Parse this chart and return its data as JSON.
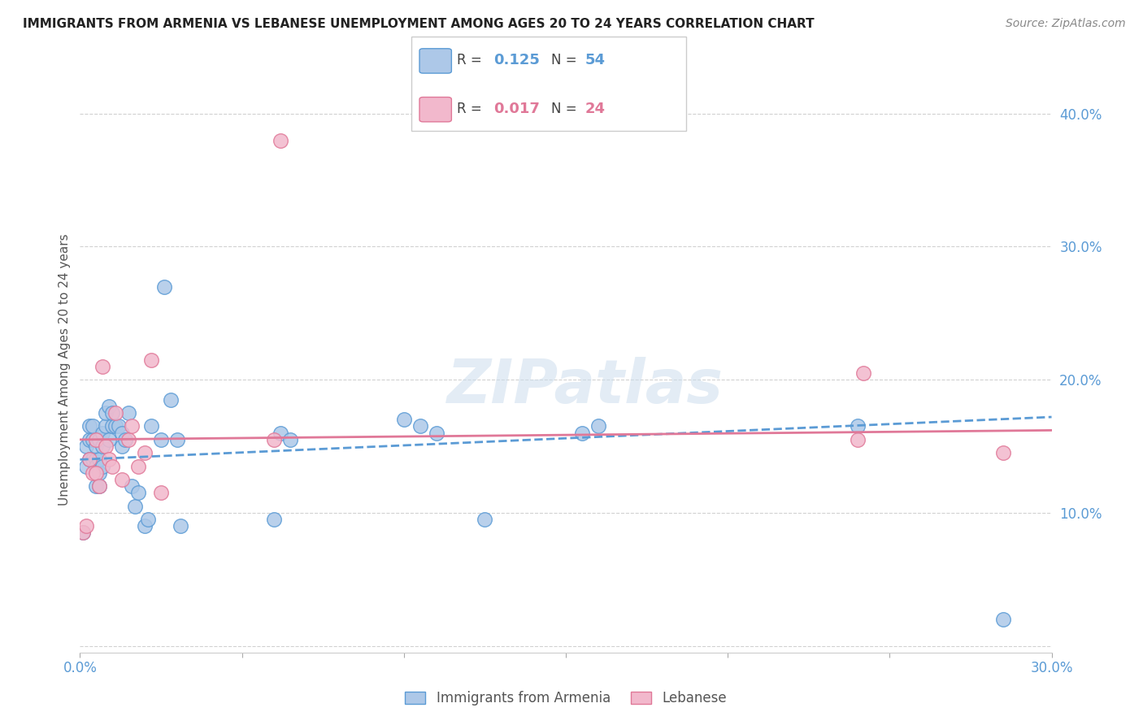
{
  "title": "IMMIGRANTS FROM ARMENIA VS LEBANESE UNEMPLOYMENT AMONG AGES 20 TO 24 YEARS CORRELATION CHART",
  "source": "Source: ZipAtlas.com",
  "ylabel": "Unemployment Among Ages 20 to 24 years",
  "xlim": [
    0.0,
    0.3
  ],
  "ylim": [
    -0.005,
    0.42
  ],
  "yticks": [
    0.0,
    0.1,
    0.2,
    0.3,
    0.4
  ],
  "ytick_labels": [
    "",
    "10.0%",
    "20.0%",
    "30.0%",
    "40.0%"
  ],
  "xticks": [
    0.0,
    0.05,
    0.1,
    0.15,
    0.2,
    0.25,
    0.3
  ],
  "xtick_labels": [
    "0.0%",
    "",
    "",
    "",
    "",
    "",
    "30.0%"
  ],
  "series1_color": "#adc8e8",
  "series1_edge_color": "#5b9bd5",
  "series2_color": "#f2b8cc",
  "series2_edge_color": "#e07898",
  "series1_label": "Immigrants from Armenia",
  "series2_label": "Lebanese",
  "series1_R": "0.125",
  "series1_N": "54",
  "series2_R": "0.017",
  "series2_N": "24",
  "r_label_color": "#5b9bd5",
  "n_label_color": "#5b9bd5",
  "r2_label_color": "#e07898",
  "n2_label_color": "#e07898",
  "axis_tick_color": "#5b9bd5",
  "grid_color": "#cccccc",
  "title_color": "#222222",
  "source_color": "#888888",
  "watermark": "ZIPatlas",
  "series1_x": [
    0.001,
    0.002,
    0.002,
    0.003,
    0.003,
    0.003,
    0.004,
    0.004,
    0.004,
    0.005,
    0.005,
    0.005,
    0.005,
    0.006,
    0.006,
    0.006,
    0.006,
    0.007,
    0.007,
    0.007,
    0.008,
    0.008,
    0.009,
    0.009,
    0.01,
    0.01,
    0.011,
    0.012,
    0.013,
    0.013,
    0.014,
    0.015,
    0.016,
    0.017,
    0.018,
    0.02,
    0.021,
    0.022,
    0.025,
    0.026,
    0.028,
    0.03,
    0.031,
    0.06,
    0.062,
    0.065,
    0.1,
    0.105,
    0.11,
    0.125,
    0.155,
    0.16,
    0.24,
    0.285
  ],
  "series1_y": [
    0.085,
    0.135,
    0.15,
    0.14,
    0.155,
    0.165,
    0.14,
    0.155,
    0.165,
    0.14,
    0.15,
    0.135,
    0.12,
    0.12,
    0.13,
    0.14,
    0.155,
    0.135,
    0.15,
    0.16,
    0.165,
    0.175,
    0.18,
    0.155,
    0.165,
    0.175,
    0.165,
    0.165,
    0.15,
    0.16,
    0.155,
    0.175,
    0.12,
    0.105,
    0.115,
    0.09,
    0.095,
    0.165,
    0.155,
    0.27,
    0.185,
    0.155,
    0.09,
    0.095,
    0.16,
    0.155,
    0.17,
    0.165,
    0.16,
    0.095,
    0.16,
    0.165,
    0.165,
    0.02
  ],
  "series2_x": [
    0.001,
    0.002,
    0.003,
    0.004,
    0.005,
    0.005,
    0.006,
    0.007,
    0.008,
    0.009,
    0.01,
    0.011,
    0.013,
    0.015,
    0.016,
    0.018,
    0.02,
    0.022,
    0.025,
    0.06,
    0.062,
    0.24,
    0.242,
    0.285
  ],
  "series2_y": [
    0.085,
    0.09,
    0.14,
    0.13,
    0.13,
    0.155,
    0.12,
    0.21,
    0.15,
    0.14,
    0.135,
    0.175,
    0.125,
    0.155,
    0.165,
    0.135,
    0.145,
    0.215,
    0.115,
    0.155,
    0.38,
    0.155,
    0.205,
    0.145
  ],
  "line1_x": [
    0.0,
    0.3
  ],
  "line1_y": [
    0.14,
    0.172
  ],
  "line1_color": "#5b9bd5",
  "line2_x": [
    0.0,
    0.3
  ],
  "line2_y": [
    0.155,
    0.162
  ],
  "line2_color": "#e07898"
}
